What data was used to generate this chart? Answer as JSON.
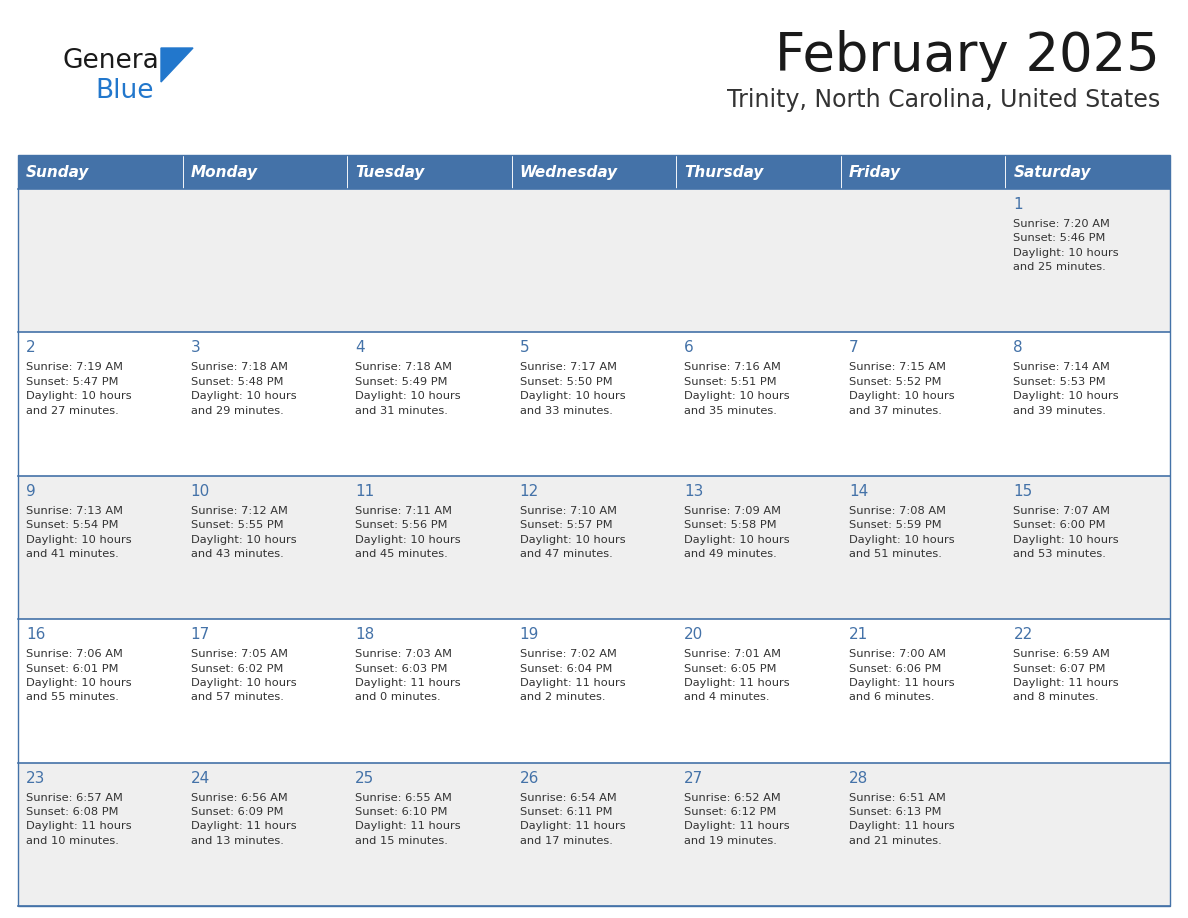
{
  "title": "February 2025",
  "subtitle": "Trinity, North Carolina, United States",
  "header_bg_color": "#4472a8",
  "header_text_color": "#ffffff",
  "cell_bg_row0": "#efefef",
  "cell_bg_row1": "#ffffff",
  "border_color": "#4472a8",
  "day_headers": [
    "Sunday",
    "Monday",
    "Tuesday",
    "Wednesday",
    "Thursday",
    "Friday",
    "Saturday"
  ],
  "title_color": "#1a1a1a",
  "subtitle_color": "#333333",
  "day_number_color": "#4472a8",
  "info_color": "#333333",
  "logo_general_color": "#1a1a1a",
  "logo_blue_color": "#2277cc",
  "fig_width": 11.88,
  "fig_height": 9.18,
  "dpi": 100,
  "calendar_data": [
    [
      {
        "day": null,
        "info": null
      },
      {
        "day": null,
        "info": null
      },
      {
        "day": null,
        "info": null
      },
      {
        "day": null,
        "info": null
      },
      {
        "day": null,
        "info": null
      },
      {
        "day": null,
        "info": null
      },
      {
        "day": "1",
        "info": "Sunrise: 7:20 AM\nSunset: 5:46 PM\nDaylight: 10 hours\nand 25 minutes."
      }
    ],
    [
      {
        "day": "2",
        "info": "Sunrise: 7:19 AM\nSunset: 5:47 PM\nDaylight: 10 hours\nand 27 minutes."
      },
      {
        "day": "3",
        "info": "Sunrise: 7:18 AM\nSunset: 5:48 PM\nDaylight: 10 hours\nand 29 minutes."
      },
      {
        "day": "4",
        "info": "Sunrise: 7:18 AM\nSunset: 5:49 PM\nDaylight: 10 hours\nand 31 minutes."
      },
      {
        "day": "5",
        "info": "Sunrise: 7:17 AM\nSunset: 5:50 PM\nDaylight: 10 hours\nand 33 minutes."
      },
      {
        "day": "6",
        "info": "Sunrise: 7:16 AM\nSunset: 5:51 PM\nDaylight: 10 hours\nand 35 minutes."
      },
      {
        "day": "7",
        "info": "Sunrise: 7:15 AM\nSunset: 5:52 PM\nDaylight: 10 hours\nand 37 minutes."
      },
      {
        "day": "8",
        "info": "Sunrise: 7:14 AM\nSunset: 5:53 PM\nDaylight: 10 hours\nand 39 minutes."
      }
    ],
    [
      {
        "day": "9",
        "info": "Sunrise: 7:13 AM\nSunset: 5:54 PM\nDaylight: 10 hours\nand 41 minutes."
      },
      {
        "day": "10",
        "info": "Sunrise: 7:12 AM\nSunset: 5:55 PM\nDaylight: 10 hours\nand 43 minutes."
      },
      {
        "day": "11",
        "info": "Sunrise: 7:11 AM\nSunset: 5:56 PM\nDaylight: 10 hours\nand 45 minutes."
      },
      {
        "day": "12",
        "info": "Sunrise: 7:10 AM\nSunset: 5:57 PM\nDaylight: 10 hours\nand 47 minutes."
      },
      {
        "day": "13",
        "info": "Sunrise: 7:09 AM\nSunset: 5:58 PM\nDaylight: 10 hours\nand 49 minutes."
      },
      {
        "day": "14",
        "info": "Sunrise: 7:08 AM\nSunset: 5:59 PM\nDaylight: 10 hours\nand 51 minutes."
      },
      {
        "day": "15",
        "info": "Sunrise: 7:07 AM\nSunset: 6:00 PM\nDaylight: 10 hours\nand 53 minutes."
      }
    ],
    [
      {
        "day": "16",
        "info": "Sunrise: 7:06 AM\nSunset: 6:01 PM\nDaylight: 10 hours\nand 55 minutes."
      },
      {
        "day": "17",
        "info": "Sunrise: 7:05 AM\nSunset: 6:02 PM\nDaylight: 10 hours\nand 57 minutes."
      },
      {
        "day": "18",
        "info": "Sunrise: 7:03 AM\nSunset: 6:03 PM\nDaylight: 11 hours\nand 0 minutes."
      },
      {
        "day": "19",
        "info": "Sunrise: 7:02 AM\nSunset: 6:04 PM\nDaylight: 11 hours\nand 2 minutes."
      },
      {
        "day": "20",
        "info": "Sunrise: 7:01 AM\nSunset: 6:05 PM\nDaylight: 11 hours\nand 4 minutes."
      },
      {
        "day": "21",
        "info": "Sunrise: 7:00 AM\nSunset: 6:06 PM\nDaylight: 11 hours\nand 6 minutes."
      },
      {
        "day": "22",
        "info": "Sunrise: 6:59 AM\nSunset: 6:07 PM\nDaylight: 11 hours\nand 8 minutes."
      }
    ],
    [
      {
        "day": "23",
        "info": "Sunrise: 6:57 AM\nSunset: 6:08 PM\nDaylight: 11 hours\nand 10 minutes."
      },
      {
        "day": "24",
        "info": "Sunrise: 6:56 AM\nSunset: 6:09 PM\nDaylight: 11 hours\nand 13 minutes."
      },
      {
        "day": "25",
        "info": "Sunrise: 6:55 AM\nSunset: 6:10 PM\nDaylight: 11 hours\nand 15 minutes."
      },
      {
        "day": "26",
        "info": "Sunrise: 6:54 AM\nSunset: 6:11 PM\nDaylight: 11 hours\nand 17 minutes."
      },
      {
        "day": "27",
        "info": "Sunrise: 6:52 AM\nSunset: 6:12 PM\nDaylight: 11 hours\nand 19 minutes."
      },
      {
        "day": "28",
        "info": "Sunrise: 6:51 AM\nSunset: 6:13 PM\nDaylight: 11 hours\nand 21 minutes."
      },
      {
        "day": null,
        "info": null
      }
    ]
  ]
}
